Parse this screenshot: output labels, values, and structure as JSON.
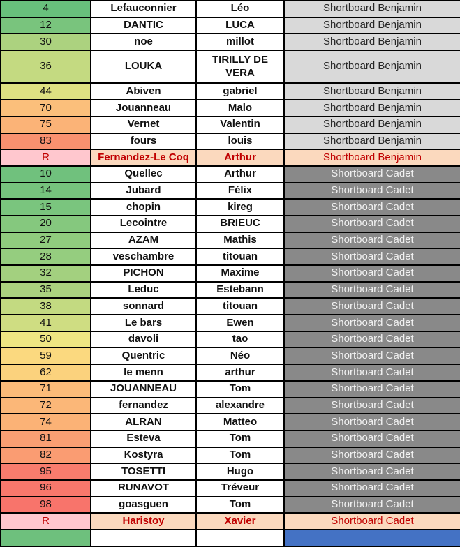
{
  "table": {
    "columns": [
      "seed_number",
      "last_name",
      "first_name",
      "category"
    ],
    "rows": [
      {
        "num": "4",
        "last": "Lefauconnier",
        "first": "Léo",
        "cat": "Shortboard Benjamin",
        "num_bg": "#68C07C",
        "kind": "benjamin"
      },
      {
        "num": "12",
        "last": "DANTIC",
        "first": "LUCA",
        "cat": "Shortboard Benjamin",
        "num_bg": "#79C47D",
        "kind": "benjamin"
      },
      {
        "num": "30",
        "last": "noe",
        "first": "millot",
        "cat": "Shortboard Benjamin",
        "num_bg": "#ACD27F",
        "kind": "benjamin"
      },
      {
        "num": "36",
        "last": "LOUKA",
        "first": "TIRILLY DE VERA",
        "cat": "Shortboard Benjamin",
        "num_bg": "#C4DA81",
        "kind": "benjamin",
        "tall": true
      },
      {
        "num": "44",
        "last": "Abiven",
        "first": "gabriel",
        "cat": "Shortboard Benjamin",
        "num_bg": "#DEE182",
        "kind": "benjamin"
      },
      {
        "num": "70",
        "last": "Jouanneau",
        "first": "Malo",
        "cat": "Shortboard Benjamin",
        "num_bg": "#FBBF7B",
        "kind": "benjamin"
      },
      {
        "num": "75",
        "last": "Vernet",
        "first": "Valentin",
        "cat": "Shortboard Benjamin",
        "num_bg": "#FBB377",
        "kind": "benjamin"
      },
      {
        "num": "83",
        "last": "fours",
        "first": "louis",
        "cat": "Shortboard Benjamin",
        "num_bg": "#F9916F",
        "kind": "benjamin"
      },
      {
        "num": "R",
        "last": "Fernandez-Le Coq",
        "first": "Arthur",
        "cat": "Shortboard Benjamin",
        "num_bg": "#FFC7CE",
        "kind": "r-benjamin"
      },
      {
        "num": "10",
        "last": "Quellec",
        "first": "Arthur",
        "cat": "Shortboard Cadet",
        "num_bg": "#70C17D",
        "kind": "cadet"
      },
      {
        "num": "14",
        "last": "Jubard",
        "first": "Félix",
        "cat": "Shortboard Cadet",
        "num_bg": "#76C37D",
        "kind": "cadet"
      },
      {
        "num": "15",
        "last": "chopin",
        "first": "kireg",
        "cat": "Shortboard Cadet",
        "num_bg": "#7AC57E",
        "kind": "cadet"
      },
      {
        "num": "20",
        "last": "Lecointre",
        "first": "BRIEUC",
        "cat": "Shortboard Cadet",
        "num_bg": "#85C87E",
        "kind": "cadet"
      },
      {
        "num": "27",
        "last": "AZAM",
        "first": "Mathis",
        "cat": "Shortboard Cadet",
        "num_bg": "#90CC7E",
        "kind": "cadet"
      },
      {
        "num": "28",
        "last": "veschambre",
        "first": "titouan",
        "cat": "Shortboard Cadet",
        "num_bg": "#95CD7F",
        "kind": "cadet"
      },
      {
        "num": "32",
        "last": "PICHON",
        "first": "Maxime",
        "cat": "Shortboard Cadet",
        "num_bg": "#A3D07F",
        "kind": "cadet"
      },
      {
        "num": "35",
        "last": "Leduc",
        "first": "Estebann",
        "cat": "Shortboard Cadet",
        "num_bg": "#ABD27F",
        "kind": "cadet"
      },
      {
        "num": "38",
        "last": "sonnard",
        "first": "titouan",
        "cat": "Shortboard Cadet",
        "num_bg": "#C3DA81",
        "kind": "cadet"
      },
      {
        "num": "41",
        "last": "Le bars",
        "first": "Ewen",
        "cat": "Shortboard Cadet",
        "num_bg": "#CFDD82",
        "kind": "cadet"
      },
      {
        "num": "50",
        "last": "davoli",
        "first": "tao",
        "cat": "Shortboard Cadet",
        "num_bg": "#EFE683",
        "kind": "cadet"
      },
      {
        "num": "59",
        "last": "Quentric",
        "first": "Néo",
        "cat": "Shortboard Cadet",
        "num_bg": "#FBD97F",
        "kind": "cadet"
      },
      {
        "num": "62",
        "last": "le menn",
        "first": "arthur",
        "cat": "Shortboard Cadet",
        "num_bg": "#FBD27D",
        "kind": "cadet"
      },
      {
        "num": "71",
        "last": "JOUANNEAU",
        "first": "Tom",
        "cat": "Shortboard Cadet",
        "num_bg": "#FBBB79",
        "kind": "cadet"
      },
      {
        "num": "72",
        "last": "fernandez",
        "first": "alexandre",
        "cat": "Shortboard Cadet",
        "num_bg": "#FBB778",
        "kind": "cadet"
      },
      {
        "num": "74",
        "last": "ALRAN",
        "first": "Matteo",
        "cat": "Shortboard Cadet",
        "num_bg": "#FBB276",
        "kind": "cadet"
      },
      {
        "num": "81",
        "last": "Esteva",
        "first": "Tom",
        "cat": "Shortboard Cadet",
        "num_bg": "#FA9F73",
        "kind": "cadet"
      },
      {
        "num": "82",
        "last": "Kostyra",
        "first": "Tom",
        "cat": "Shortboard Cadet",
        "num_bg": "#FA9C72",
        "kind": "cadet"
      },
      {
        "num": "95",
        "last": "TOSETTI",
        "first": "Hugo",
        "cat": "Shortboard Cadet",
        "num_bg": "#F87C6D",
        "kind": "cadet"
      },
      {
        "num": "96",
        "last": "RUNAVOT",
        "first": "Tréveur",
        "cat": "Shortboard Cadet",
        "num_bg": "#F8786C",
        "kind": "cadet"
      },
      {
        "num": "98",
        "last": "goasguen",
        "first": "Tom",
        "cat": "Shortboard Cadet",
        "num_bg": "#F8746B",
        "kind": "cadet"
      },
      {
        "num": "R",
        "last": "Haristoy",
        "first": "Xavier",
        "cat": "Shortboard Cadet",
        "num_bg": "#FFC7CE",
        "kind": "r-cadet"
      },
      {
        "num": "",
        "last": "",
        "first": "",
        "cat": "",
        "num_bg": "#6EC07D",
        "kind": "partial",
        "cat_bg": "#4472C4"
      }
    ]
  },
  "colors": {
    "border": "#000000",
    "benjamin_category_bg": "#D9D9D9",
    "benjamin_category_text": "#262626",
    "cadet_category_bg": "#898989",
    "cadet_category_text": "#F2F2F2",
    "r_row_num_bg": "#FFC7CE",
    "r_row_name_bg": "#FBD9BE",
    "r_row_text": "#C00000",
    "heat_scale_min_green": "#63BE7B",
    "heat_scale_mid_yellow": "#FFEB84",
    "heat_scale_max_red": "#F8696B",
    "partial_row_category_bg": "#4472C4"
  }
}
